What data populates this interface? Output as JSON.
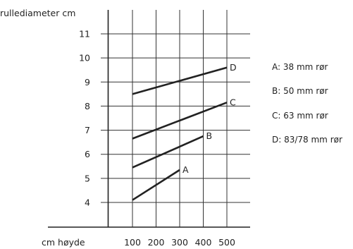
{
  "chart_data": {
    "type": "line",
    "title": "",
    "ylabel": "rullediameter cm",
    "xlabel": "cm høyde",
    "xlim": [
      -160,
      600
    ],
    "ylim": [
      2,
      11.8
    ],
    "x_ticks": [
      100,
      200,
      300,
      400,
      500
    ],
    "y_ticks": [
      4,
      5,
      6,
      7,
      8,
      9,
      10,
      11
    ],
    "grid": true,
    "legend_position": "right",
    "series": [
      {
        "name": "A",
        "x": [
          100,
          300
        ],
        "y": [
          4.1,
          5.35
        ]
      },
      {
        "name": "B",
        "x": [
          100,
          400
        ],
        "y": [
          5.45,
          6.75
        ]
      },
      {
        "name": "C",
        "x": [
          100,
          500
        ],
        "y": [
          6.65,
          8.15
        ]
      },
      {
        "name": "D",
        "x": [
          100,
          500
        ],
        "y": [
          8.5,
          9.6
        ]
      }
    ]
  },
  "legend": [
    {
      "text": "A: 38 mm rør"
    },
    {
      "text": "B: 50 mm rør"
    },
    {
      "text": "C: 63 mm rør"
    },
    {
      "text": "D: 83/78 mm rør"
    }
  ]
}
